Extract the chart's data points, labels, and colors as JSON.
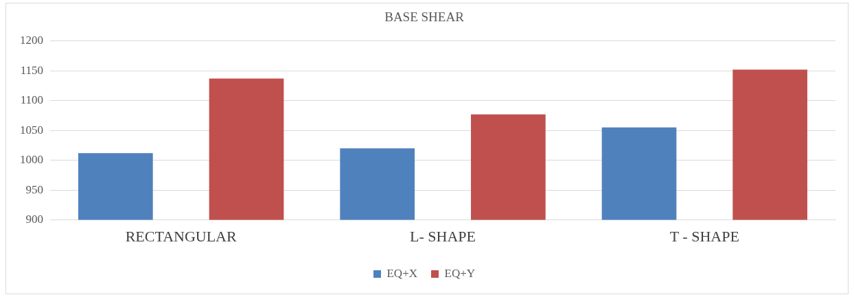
{
  "chart_data": {
    "type": "bar",
    "title": "BASE SHEAR",
    "categories": [
      "RECTANGULAR",
      "L- SHAPE",
      "T - SHAPE"
    ],
    "series": [
      {
        "name": "EQ+X",
        "color": "#4f81bd",
        "values": [
          1012,
          1020,
          1055
        ]
      },
      {
        "name": "EQ+Y",
        "color": "#c0504d",
        "values": [
          1137,
          1077,
          1152
        ]
      }
    ],
    "ylim": [
      900,
      1200
    ],
    "yticks": [
      900,
      950,
      1000,
      1050,
      1100,
      1150,
      1200
    ],
    "grid": "y",
    "legend": "bottom"
  }
}
